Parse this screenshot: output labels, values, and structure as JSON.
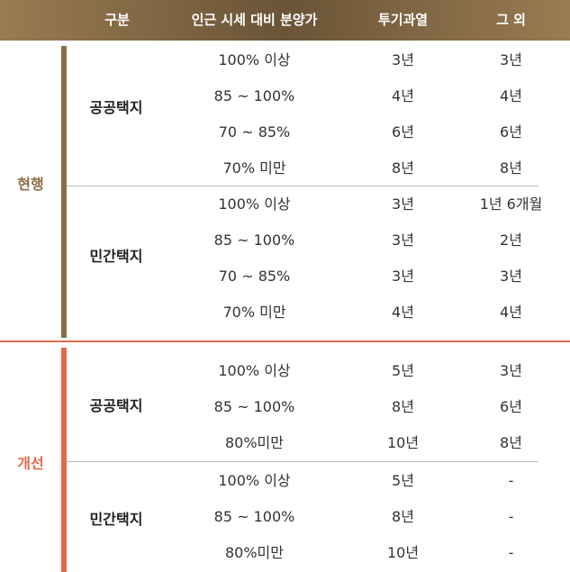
{
  "header": {
    "category": "구분",
    "ratio": "인근 시세 대비 분양가",
    "speculative": "투기과열",
    "other": "그 외"
  },
  "colors": {
    "header_gradient": "#7d6442",
    "current_accent": "#8b6d47",
    "reform_accent": "#e8674a"
  },
  "sections": [
    {
      "label": "현행",
      "groups": [
        {
          "label": "공공택지",
          "rows": [
            {
              "range": "100% 이상",
              "speculative": "3년",
              "other": "3년"
            },
            {
              "range": "85 ~ 100%",
              "speculative": "4년",
              "other": "4년"
            },
            {
              "range": "70 ~ 85%",
              "speculative": "6년",
              "other": "6년"
            },
            {
              "range": "70% 미만",
              "speculative": "8년",
              "other": "8년"
            }
          ]
        },
        {
          "label": "민간택지",
          "rows": [
            {
              "range": "100% 이상",
              "speculative": "3년",
              "other": "1년 6개월"
            },
            {
              "range": "85 ~ 100%",
              "speculative": "3년",
              "other": "2년"
            },
            {
              "range": "70 ~ 85%",
              "speculative": "3년",
              "other": "3년"
            },
            {
              "range": "70% 미만",
              "speculative": "4년",
              "other": "4년"
            }
          ]
        }
      ]
    },
    {
      "label": "개선",
      "groups": [
        {
          "label": "공공택지",
          "rows": [
            {
              "range": "100% 이상",
              "speculative": "5년",
              "other": "3년"
            },
            {
              "range": "85 ~ 100%",
              "speculative": "8년",
              "other": "6년"
            },
            {
              "range": "80%미만",
              "speculative": "10년",
              "other": "8년"
            }
          ]
        },
        {
          "label": "민간택지",
          "rows": [
            {
              "range": "100% 이상",
              "speculative": "5년",
              "other": "-"
            },
            {
              "range": "85 ~ 100%",
              "speculative": "8년",
              "other": "-"
            },
            {
              "range": "80%미만",
              "speculative": "10년",
              "other": "-"
            }
          ]
        }
      ]
    }
  ]
}
